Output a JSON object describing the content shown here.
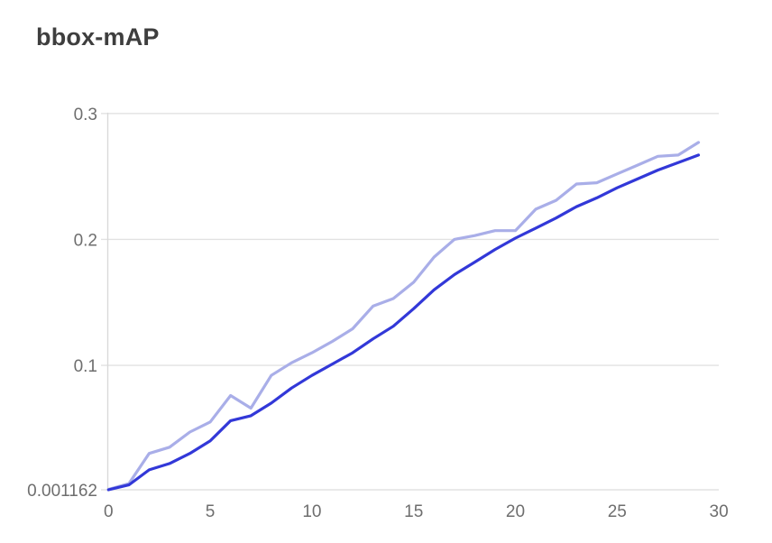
{
  "page": {
    "background_color": "#ffffff"
  },
  "chart_data": {
    "type": "line",
    "title": "bbox-mAP",
    "xlabel": "",
    "ylabel": "",
    "legend": "none",
    "grid": "horizontal",
    "xlim": [
      0,
      30
    ],
    "ylim": [
      0.001162,
      0.305
    ],
    "x_ticks": [
      0,
      5,
      10,
      15,
      20,
      25,
      30
    ],
    "y_ticks": [
      {
        "label": "0.3",
        "value": 0.3
      },
      {
        "label": "0.2",
        "value": 0.2
      },
      {
        "label": "0.1",
        "value": 0.1
      },
      {
        "label": "0.001162",
        "value": 0.001162
      }
    ],
    "x": [
      0,
      1,
      2,
      3,
      4,
      5,
      6,
      7,
      8,
      9,
      10,
      11,
      12,
      13,
      14,
      15,
      16,
      17,
      18,
      19,
      20,
      21,
      22,
      23,
      24,
      25,
      26,
      27,
      28,
      29
    ],
    "series": [
      {
        "name": "upper-light-blue-line",
        "color": "#a9aee8",
        "values": [
          0.0015,
          0.006,
          0.03,
          0.035,
          0.047,
          0.055,
          0.076,
          0.066,
          0.092,
          0.102,
          0.11,
          0.119,
          0.129,
          0.147,
          0.153,
          0.166,
          0.186,
          0.2,
          0.203,
          0.207,
          0.207,
          0.224,
          0.231,
          0.244,
          0.245,
          0.252,
          0.259,
          0.266,
          0.267,
          0.277
        ]
      },
      {
        "name": "lower-dark-blue-line",
        "color": "#3238d8",
        "values": [
          0.001162,
          0.005,
          0.017,
          0.022,
          0.03,
          0.04,
          0.056,
          0.06,
          0.07,
          0.082,
          0.092,
          0.101,
          0.11,
          0.121,
          0.131,
          0.145,
          0.16,
          0.172,
          0.182,
          0.192,
          0.201,
          0.209,
          0.217,
          0.226,
          0.233,
          0.241,
          0.248,
          0.255,
          0.261,
          0.267
        ]
      }
    ],
    "style_colors": {
      "gridline": "#e2e2e2",
      "axis_line": "#d9d9d9",
      "tick_label": "#6e6e6e",
      "title": "#3e3e3e"
    }
  }
}
